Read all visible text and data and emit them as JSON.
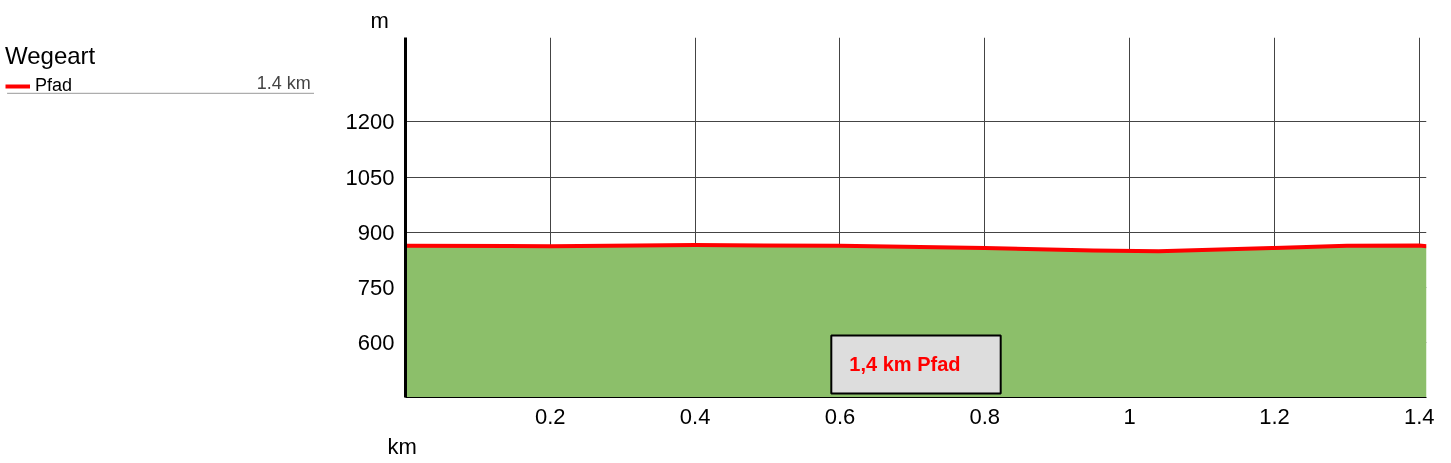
{
  "chart_data": {
    "type": "area",
    "legend_title": "Wegeart",
    "xlabel": "km",
    "ylabel": "m",
    "x": [
      0,
      0.2,
      0.4,
      0.6,
      0.8,
      0.95,
      1.04,
      1.2,
      1.3,
      1.4,
      1.41
    ],
    "series": [
      {
        "color": "#8cbf6a",
        "values": [
          863,
          862,
          865,
          863,
          857,
          850,
          848,
          857,
          863,
          864,
          862
        ]
      },
      {
        "type": "line",
        "name": "Pfad",
        "color": "#ff0000",
        "values": [
          863,
          862,
          865,
          863,
          857,
          850,
          848,
          857,
          863,
          864,
          862
        ]
      }
    ],
    "xlim": [
      0,
      1.41
    ],
    "ylim": [
      450,
      1430
    ],
    "xticks": [
      0.2,
      0.4,
      0.6,
      0.8,
      1,
      1.2,
      1.4
    ],
    "yticks": [
      600,
      750,
      900,
      1050,
      1200
    ],
    "grid": true,
    "legend": "top left",
    "annotations": [
      "1.4 km",
      "1,4 km Pfad"
    ]
  }
}
